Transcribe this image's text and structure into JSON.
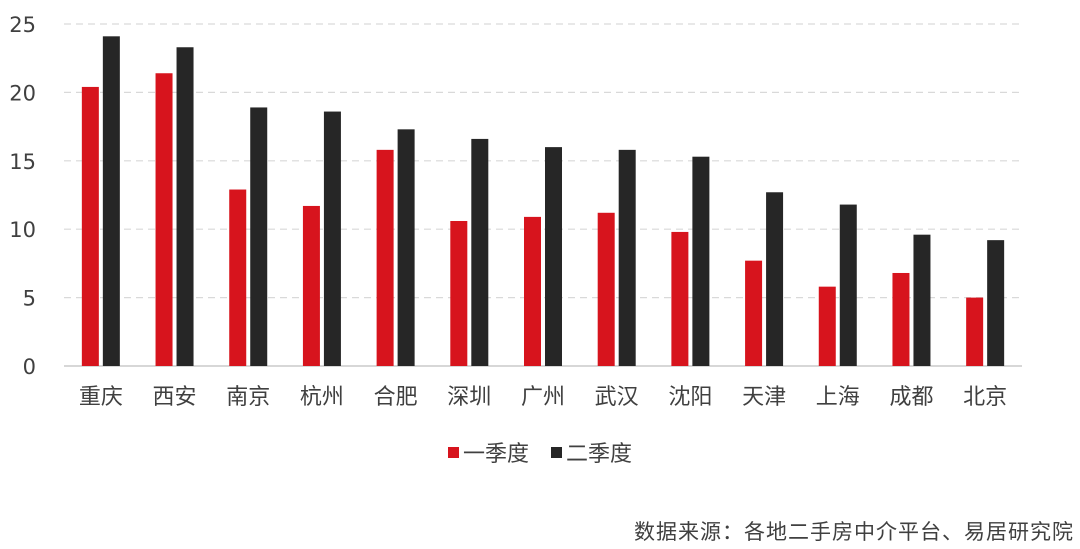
{
  "chart_data": {
    "type": "bar",
    "categories": [
      "重庆",
      "西安",
      "南京",
      "杭州",
      "合肥",
      "深圳",
      "广州",
      "武汉",
      "沈阳",
      "天津",
      "上海",
      "成都",
      "北京"
    ],
    "series": [
      {
        "name": "一季度",
        "color": "#d7141d",
        "values": [
          20.4,
          21.4,
          12.9,
          11.7,
          15.8,
          10.6,
          10.9,
          11.2,
          9.8,
          7.7,
          5.8,
          6.8,
          5.0
        ]
      },
      {
        "name": "二季度",
        "color": "#262626",
        "values": [
          24.1,
          23.3,
          18.9,
          18.6,
          17.3,
          16.6,
          16.0,
          15.8,
          15.3,
          12.7,
          11.8,
          9.6,
          9.2
        ]
      }
    ],
    "yticks": [
      0,
      5,
      10,
      15,
      20,
      25
    ],
    "ylim": [
      0,
      25
    ],
    "grid": true,
    "legend_position": "bottom"
  },
  "source_text": "数据来源：各地二手房中介平台、易居研究院"
}
